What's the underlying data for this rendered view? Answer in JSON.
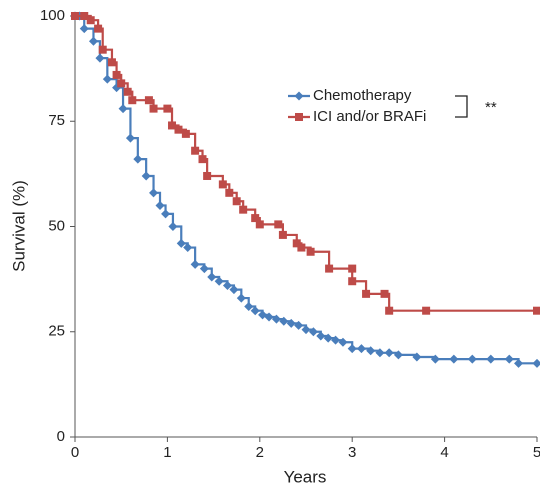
{
  "chart_data": {
    "type": "step",
    "x_label": "Years",
    "y_label": "Survival (%)",
    "xlim": [
      0,
      5
    ],
    "xticks": [
      0,
      1,
      2,
      3,
      4,
      5
    ],
    "ylim": [
      0,
      100
    ],
    "yticks": [
      0,
      25,
      50,
      75,
      100
    ],
    "legend": "upper right",
    "annotation": "**",
    "series": [
      {
        "name": "Chemotherapy",
        "color": "#4a7ebb",
        "marker": "diamond",
        "x": [
          0,
          0.05,
          0.1,
          0.2,
          0.27,
          0.35,
          0.45,
          0.52,
          0.6,
          0.68,
          0.77,
          0.85,
          0.92,
          0.98,
          1.06,
          1.15,
          1.22,
          1.3,
          1.4,
          1.48,
          1.56,
          1.65,
          1.72,
          1.8,
          1.88,
          1.95,
          2.03,
          2.1,
          2.18,
          2.26,
          2.34,
          2.42,
          2.5,
          2.58,
          2.66,
          2.74,
          2.82,
          2.9,
          3.0,
          3.1,
          3.2,
          3.3,
          3.4,
          3.5,
          3.7,
          3.9,
          4.1,
          4.3,
          4.5,
          4.7,
          4.8,
          5
        ],
        "values": [
          100,
          100,
          97,
          94,
          90,
          85,
          83,
          78,
          71,
          66,
          62,
          58,
          55,
          53,
          50,
          46,
          45,
          41,
          40,
          38,
          37,
          36,
          35,
          33,
          31,
          30,
          29,
          28.5,
          28,
          27.5,
          27,
          26.5,
          25.5,
          25,
          24,
          23.5,
          23,
          22.5,
          21,
          21,
          20.5,
          20,
          20,
          19.5,
          19,
          18.5,
          18.5,
          18.5,
          18.5,
          18.5,
          17.5,
          17.5
        ]
      },
      {
        "name": "ICI and/or BRAFi",
        "color": "#be4b48",
        "marker": "square",
        "x": [
          0,
          0.1,
          0.17,
          0.25,
          0.3,
          0.4,
          0.45,
          0.5,
          0.57,
          0.62,
          0.8,
          0.85,
          1.0,
          1.05,
          1.12,
          1.2,
          1.3,
          1.38,
          1.43,
          1.6,
          1.67,
          1.75,
          1.82,
          1.95,
          2.0,
          2.2,
          2.25,
          2.4,
          2.45,
          2.55,
          2.75,
          3.0,
          3.0,
          3.15,
          3.35,
          3.4,
          3.8,
          5
        ],
        "values": [
          100,
          100,
          99,
          97,
          92,
          89,
          86,
          84,
          82,
          80,
          80,
          78,
          78,
          74,
          73,
          72,
          68,
          66,
          62,
          60,
          58,
          56,
          54,
          52,
          50.5,
          50.5,
          48,
          46,
          45,
          44,
          40,
          40,
          37,
          34,
          34,
          30,
          30,
          30
        ]
      }
    ]
  }
}
